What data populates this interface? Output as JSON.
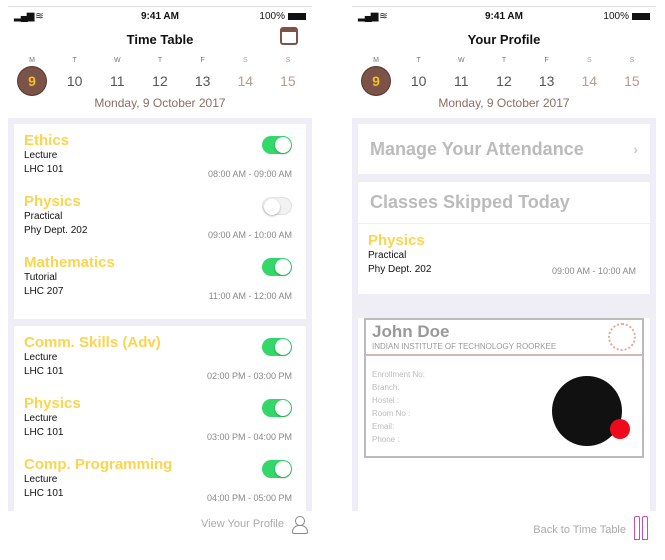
{
  "status": {
    "time": "9:41 AM",
    "battery": "100%"
  },
  "week": {
    "days": [
      {
        "l": "M",
        "n": "9"
      },
      {
        "l": "T",
        "n": "10"
      },
      {
        "l": "W",
        "n": "11"
      },
      {
        "l": "T",
        "n": "12"
      },
      {
        "l": "F",
        "n": "13"
      },
      {
        "l": "S",
        "n": "14"
      },
      {
        "l": "S",
        "n": "15"
      }
    ],
    "selected": "9",
    "date": "Monday, 9 October 2017"
  },
  "timetable": {
    "title": "Time Table",
    "footer": "View Your Profile",
    "cards": [
      [
        {
          "subject": "Ethics",
          "type": "Lecture",
          "room": "LHC 101",
          "time": "08:00 AM - 09:00 AM",
          "on": true
        },
        {
          "subject": "Physics",
          "type": "Practical",
          "room": "Phy Dept. 202",
          "time": "09:00 AM - 10:00 AM",
          "on": false
        },
        {
          "subject": "Mathematics",
          "type": "Tutorial",
          "room": "LHC 207",
          "time": "11:00 AM - 12:00 AM",
          "on": true
        }
      ],
      [
        {
          "subject": "Comm. Skills (Adv)",
          "type": "Lecture",
          "room": "LHC 101",
          "time": "02:00 PM - 03:00 PM",
          "on": true
        },
        {
          "subject": "Physics",
          "type": "Lecture",
          "room": "LHC 101",
          "time": "03:00 PM - 04:00 PM",
          "on": true
        },
        {
          "subject": "Comp. Programming",
          "type": "Lecture",
          "room": "LHC 101",
          "time": "04:00 PM - 05:00 PM",
          "on": true
        }
      ]
    ]
  },
  "profile": {
    "title": "Your Profile",
    "manage": "Manage Your Attendance",
    "skipped": "Classes Skipped Today",
    "skipped_item": {
      "subject": "Physics",
      "type": "Practical",
      "room": "Phy Dept. 202",
      "time": "09:00 AM - 10:00 AM"
    },
    "id_card": {
      "name": "John Doe",
      "institute": "INDIAN INSTITUTE OF TECHNOLOGY ROORKEE",
      "fields": [
        "Enrollment No:",
        "Branch:",
        "Hostel :",
        "Room No :",
        "Email:",
        "Phone :"
      ]
    },
    "footer": "Back to Time Table"
  },
  "colors": {
    "accent": "#7b5348",
    "subject": "#fbd54f",
    "toggle_on": "#34d86a",
    "status_dot": "#ee0a1c"
  }
}
